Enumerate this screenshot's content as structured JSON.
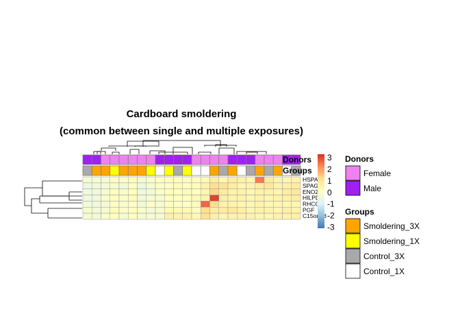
{
  "chart_data": {
    "type": "heatmap",
    "title_lines": [
      "Cardboard smoldering",
      "(common between single and multiple exposures)"
    ],
    "rows": [
      "HSPA6",
      "SPAG4",
      "ENO2",
      "HILPDA",
      "RHCG",
      "PGF",
      "C15orf48"
    ],
    "n_cols": 24,
    "values": [
      [
        -0.3,
        -0.3,
        -0.3,
        0.0,
        -0.2,
        0.0,
        -0.3,
        -0.2,
        -0.1,
        0.0,
        0.0,
        0.0,
        0.1,
        0.2,
        0.6,
        0.3,
        0.6,
        0.5,
        0.3,
        2.2,
        0.6,
        0.4,
        0.3,
        0.4
      ],
      [
        -0.6,
        -0.5,
        -0.4,
        -0.3,
        -0.5,
        -0.1,
        -0.6,
        -0.3,
        -0.1,
        -0.1,
        0.1,
        -0.1,
        0.1,
        0.4,
        1.0,
        0.9,
        0.6,
        0.3,
        0.4,
        0.6,
        0.7,
        0.4,
        0.5,
        0.6
      ],
      [
        -0.5,
        -0.5,
        -0.3,
        0.0,
        -0.2,
        0.0,
        -0.5,
        -0.4,
        -0.1,
        0.0,
        0.0,
        0.1,
        0.0,
        0.3,
        1.1,
        0.6,
        0.4,
        0.4,
        0.3,
        0.4,
        0.4,
        0.3,
        0.6,
        0.7
      ],
      [
        -0.5,
        -0.5,
        -0.2,
        0.0,
        -0.2,
        0.1,
        -0.5,
        -0.3,
        -0.3,
        0.0,
        0.0,
        0.0,
        0.2,
        0.4,
        2.8,
        0.5,
        0.4,
        0.4,
        0.3,
        0.4,
        0.3,
        0.4,
        0.5,
        0.6
      ],
      [
        -0.4,
        -0.5,
        -0.4,
        -0.1,
        -0.2,
        -0.1,
        -0.5,
        -0.1,
        -0.3,
        0.0,
        -0.1,
        -0.1,
        0.1,
        2.4,
        1.0,
        0.4,
        0.4,
        0.3,
        0.3,
        0.4,
        0.3,
        0.3,
        0.3,
        0.3
      ],
      [
        -0.3,
        -0.4,
        -0.3,
        0.1,
        -0.2,
        0.0,
        -0.2,
        -0.4,
        -0.3,
        0.2,
        0.2,
        0.2,
        0.0,
        1.0,
        0.6,
        0.6,
        0.7,
        0.5,
        0.3,
        0.4,
        0.4,
        0.3,
        0.5,
        0.4
      ],
      [
        -0.3,
        -0.4,
        -0.2,
        0.0,
        -0.3,
        0.0,
        -0.3,
        -0.3,
        -0.3,
        0.5,
        0.4,
        0.4,
        0.2,
        0.9,
        0.5,
        0.3,
        0.4,
        0.4,
        0.4,
        0.3,
        0.3,
        0.4,
        0.4,
        0.5
      ]
    ],
    "annotations": {
      "Donors": [
        "Male",
        "Male",
        "Female",
        "Female",
        "Female",
        "Female",
        "Female",
        "Female",
        "Male",
        "Male",
        "Male",
        "Male",
        "Female",
        "Female",
        "Female",
        "Female",
        "Male",
        "Male",
        "Male",
        "Female",
        "Female",
        "Female",
        "Male",
        "Male"
      ],
      "Groups": [
        "Control_3X",
        "Smoldering_3X",
        "Smoldering_3X",
        "Smoldering_1X",
        "Smoldering_3X",
        "Smoldering_3X",
        "Smoldering_3X",
        "Smoldering_1X",
        "Control_1X",
        "Smoldering_1X",
        "Control_3X",
        "Smoldering_1X",
        "Control_1X",
        "Control_1X",
        "Smoldering_3X",
        "Control_3X",
        "Smoldering_3X",
        "Control_1X",
        "Control_3X",
        "Smoldering_3X",
        "Control_3X",
        "Smoldering_3X",
        "Control_1X",
        "Control_3X"
      ]
    },
    "annotation_labels": [
      "Donors",
      "Groups"
    ],
    "color_scale": {
      "ticks": [
        3,
        2,
        1,
        0,
        -1,
        -2,
        -3
      ],
      "range": [
        -3,
        3
      ],
      "colors": [
        "#4575B4",
        "#91BFDB",
        "#E0F3F8",
        "#FFFFBF",
        "#FEE090",
        "#FC8D59",
        "#D73027"
      ]
    },
    "legends": {
      "Donors": {
        "title": "Donors",
        "items": [
          {
            "label": "Female",
            "color": "#EE82EE"
          },
          {
            "label": "Male",
            "color": "#A020F0"
          }
        ]
      },
      "Groups": {
        "title": "Groups",
        "items": [
          {
            "label": "Smoldering_3X",
            "color": "#FFA500"
          },
          {
            "label": "Smoldering_1X",
            "color": "#FFFF00"
          },
          {
            "label": "Control_3X",
            "color": "#A9A9A9"
          },
          {
            "label": "Control_1X",
            "color": "#FFFFFF"
          }
        ]
      }
    }
  }
}
